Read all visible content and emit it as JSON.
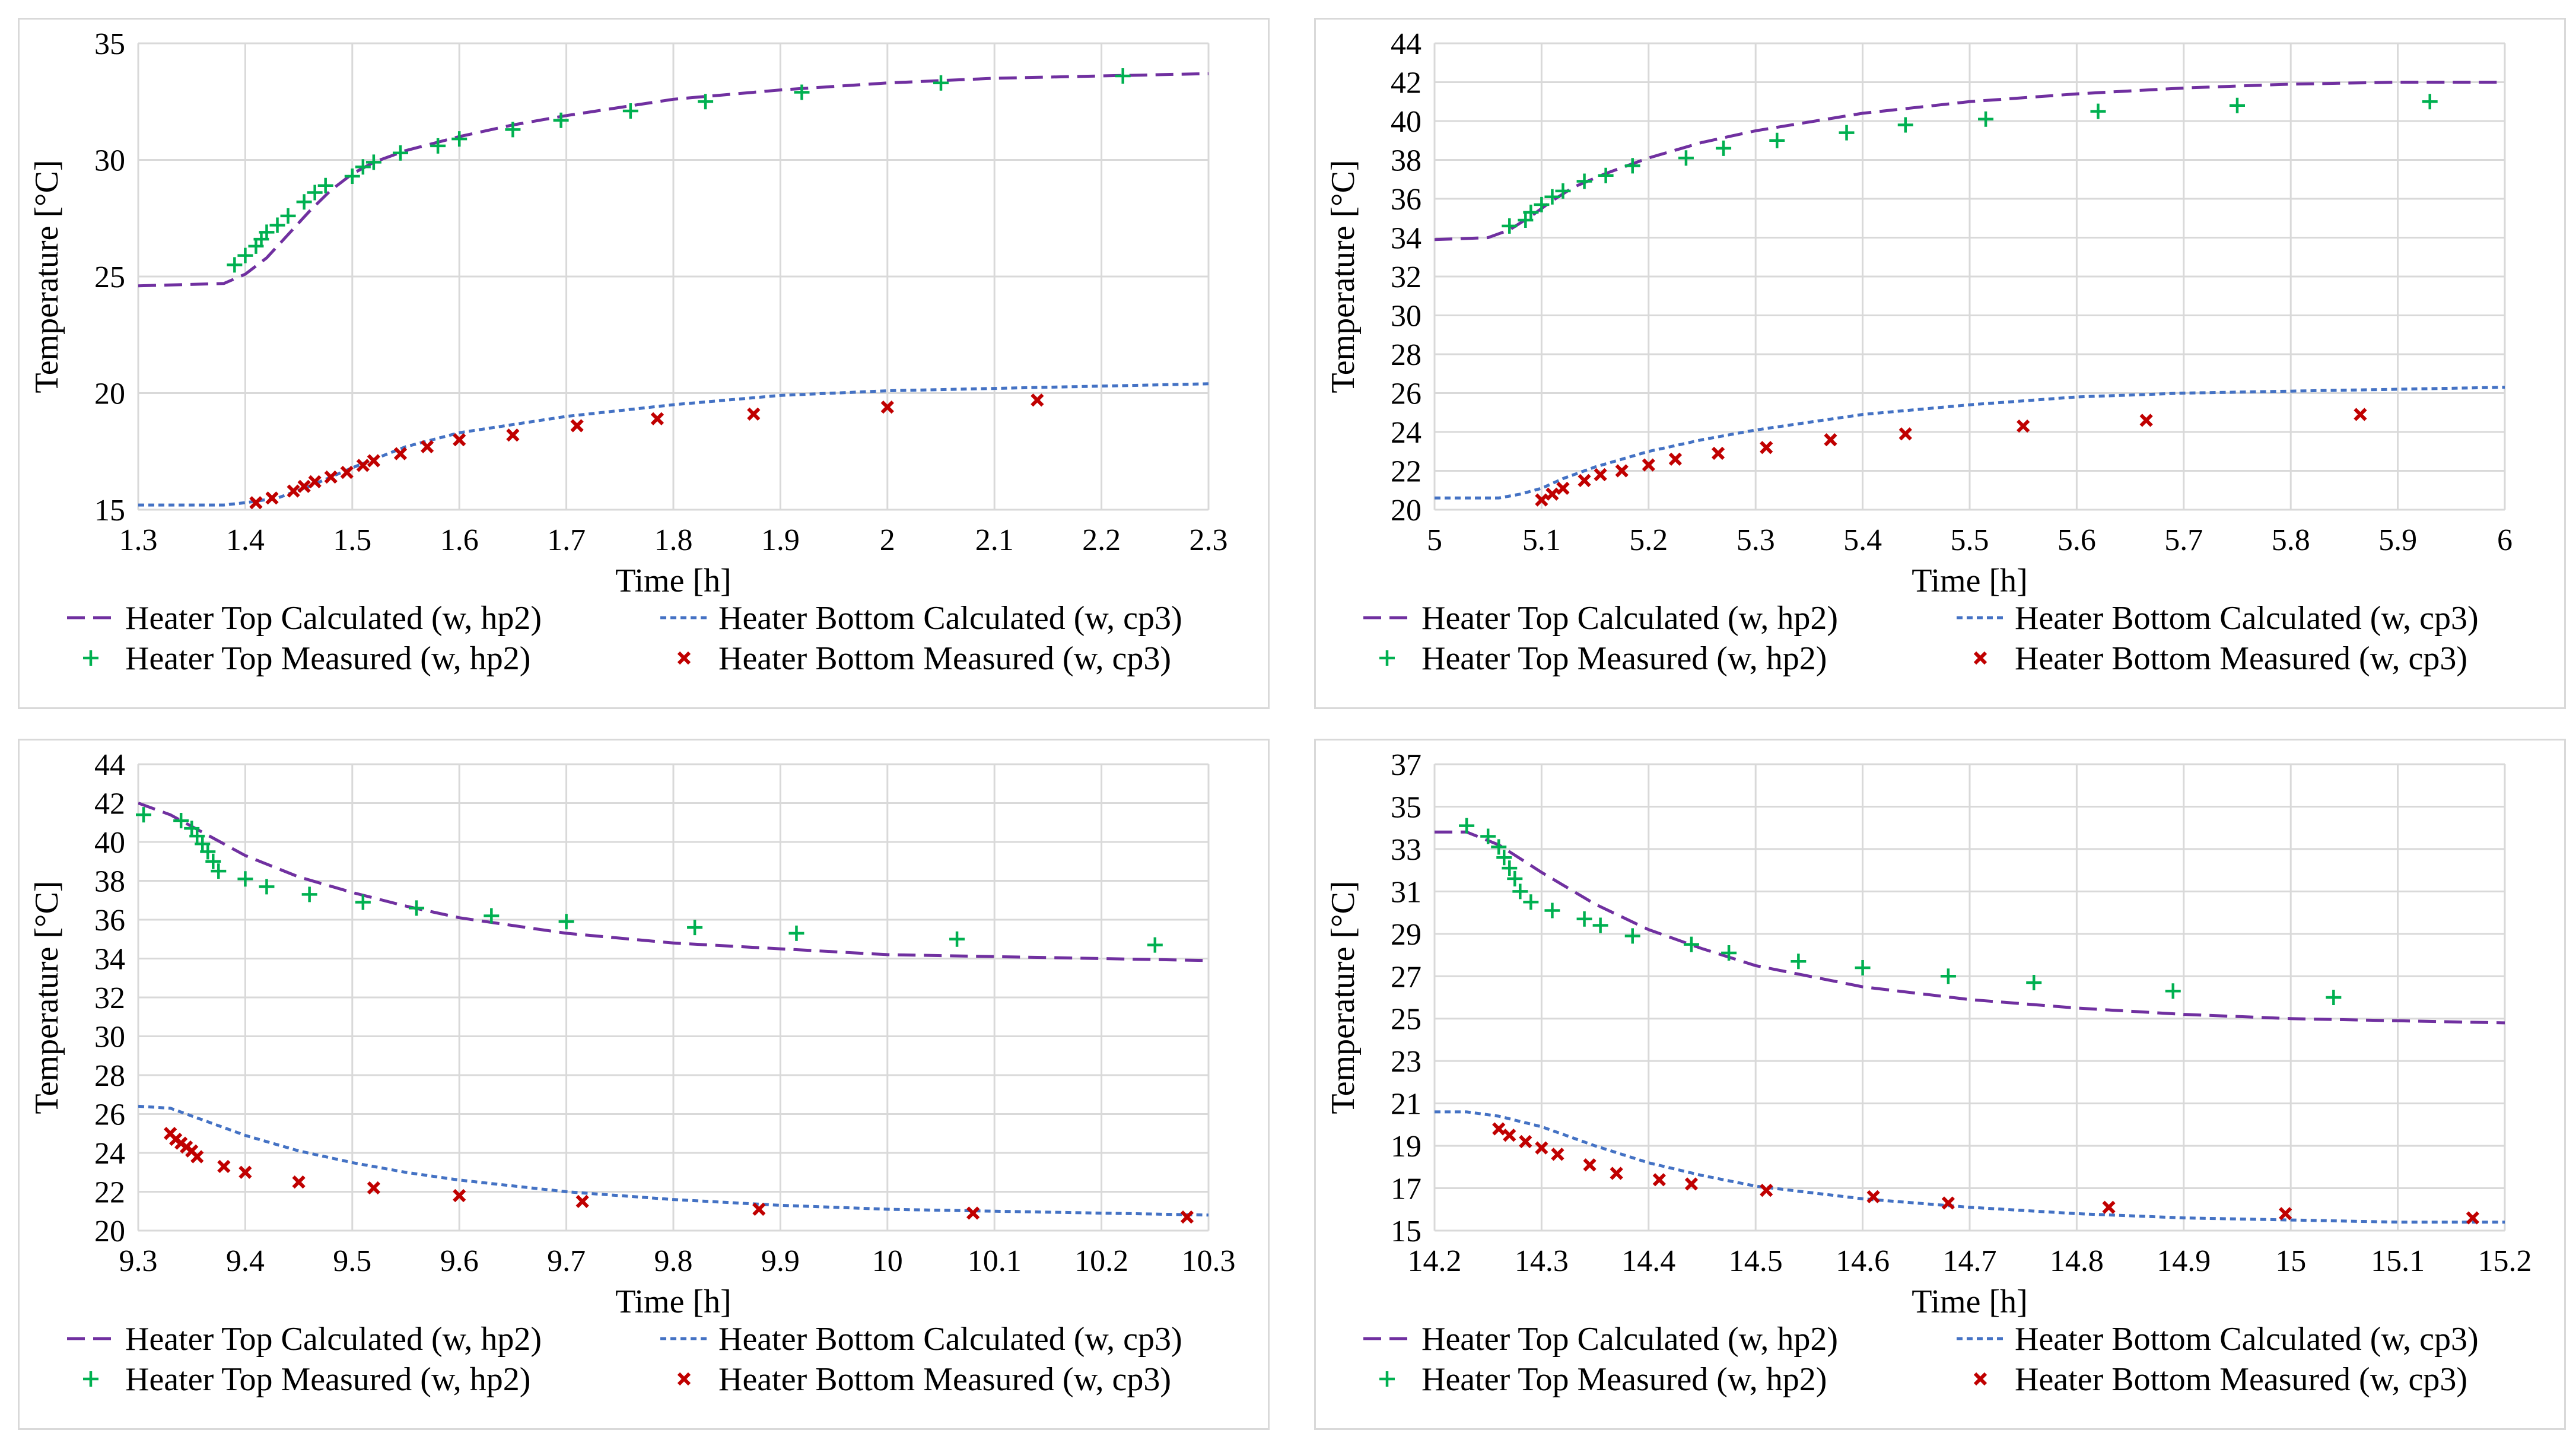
{
  "colors": {
    "top": "#7030a0",
    "bottom": "#4472c4",
    "topMeasured": "#00b050",
    "bottomMeasured": "#c00000",
    "grid": "#d9d9d9"
  },
  "legend": {
    "top_calc": "Heater Top Calculated (w, hp2)",
    "bottom_calc": "Heater Bottom Calculated (w, cp3)",
    "top_meas": "Heater Top Measured (w, hp2)",
    "bottom_meas": "Heater Bottom Measured (w, cp3)"
  },
  "chart_data": [
    {
      "type": "line",
      "xlabel": "Time [h]",
      "ylabel": "Temperature [°C]",
      "xlim": [
        1.3,
        2.3
      ],
      "ylim": [
        15,
        35
      ],
      "xticks": [
        "1.3",
        "1.4",
        "1.5",
        "1.6",
        "1.7",
        "1.8",
        "1.9",
        "2",
        "2.1",
        "2.2",
        "2.3"
      ],
      "yticks": [
        "15",
        "20",
        "25",
        "30",
        "35"
      ],
      "series": [
        {
          "name": "Heater Top Calculated (w, hp2)",
          "style": "dash",
          "x": [
            1.3,
            1.38,
            1.4,
            1.42,
            1.44,
            1.46,
            1.48,
            1.5,
            1.52,
            1.55,
            1.6,
            1.65,
            1.7,
            1.8,
            1.9,
            2.0,
            2.1,
            2.2,
            2.3
          ],
          "y": [
            24.6,
            24.7,
            25.1,
            25.8,
            26.8,
            27.8,
            28.7,
            29.4,
            29.9,
            30.4,
            31.0,
            31.5,
            31.9,
            32.6,
            33.0,
            33.3,
            33.5,
            33.6,
            33.7
          ]
        },
        {
          "name": "Heater Bottom Calculated (w, cp3)",
          "style": "dot",
          "x": [
            1.3,
            1.38,
            1.4,
            1.43,
            1.46,
            1.5,
            1.55,
            1.6,
            1.7,
            1.8,
            1.9,
            2.0,
            2.1,
            2.2,
            2.3
          ],
          "y": [
            15.2,
            15.2,
            15.3,
            15.5,
            16.0,
            16.8,
            17.7,
            18.3,
            19.0,
            19.5,
            19.9,
            20.1,
            20.2,
            20.3,
            20.4
          ]
        },
        {
          "name": "Heater Top Measured (w, hp2)",
          "marker": "plus",
          "x": [
            1.39,
            1.4,
            1.41,
            1.415,
            1.42,
            1.43,
            1.44,
            1.455,
            1.465,
            1.475,
            1.5,
            1.51,
            1.52,
            1.545,
            1.58,
            1.6,
            1.65,
            1.695,
            1.76,
            1.83,
            1.92,
            2.05,
            2.22
          ],
          "y": [
            25.5,
            25.9,
            26.3,
            26.6,
            26.9,
            27.2,
            27.6,
            28.2,
            28.6,
            28.9,
            29.3,
            29.7,
            29.9,
            30.3,
            30.6,
            30.9,
            31.3,
            31.7,
            32.1,
            32.5,
            32.9,
            33.3,
            33.6
          ]
        },
        {
          "name": "Heater Bottom Measured (w, cp3)",
          "marker": "x",
          "x": [
            1.41,
            1.425,
            1.445,
            1.455,
            1.465,
            1.48,
            1.495,
            1.51,
            1.52,
            1.545,
            1.57,
            1.6,
            1.65,
            1.71,
            1.785,
            1.875,
            2.0,
            2.14
          ],
          "y": [
            15.3,
            15.5,
            15.8,
            16.0,
            16.2,
            16.4,
            16.6,
            16.9,
            17.1,
            17.4,
            17.7,
            18.0,
            18.2,
            18.6,
            18.9,
            19.1,
            19.4,
            19.7
          ]
        }
      ]
    },
    {
      "type": "line",
      "xlabel": "Time [h]",
      "ylabel": "Temperature [°C]",
      "xlim": [
        5,
        6
      ],
      "ylim": [
        20,
        44
      ],
      "xticks": [
        "5",
        "5.1",
        "5.2",
        "5.3",
        "5.4",
        "5.5",
        "5.6",
        "5.7",
        "5.8",
        "5.9",
        "6"
      ],
      "yticks": [
        "20",
        "22",
        "24",
        "26",
        "28",
        "30",
        "32",
        "34",
        "36",
        "38",
        "40",
        "42",
        "44"
      ],
      "series": [
        {
          "name": "Heater Top Calculated (w, hp2)",
          "style": "dash",
          "x": [
            5.0,
            5.05,
            5.07,
            5.09,
            5.11,
            5.13,
            5.16,
            5.2,
            5.25,
            5.3,
            5.4,
            5.5,
            5.6,
            5.7,
            5.8,
            5.9,
            6.0
          ],
          "y": [
            33.9,
            34.0,
            34.4,
            35.1,
            35.9,
            36.6,
            37.3,
            38.1,
            38.9,
            39.5,
            40.4,
            41.0,
            41.4,
            41.7,
            41.9,
            42.0,
            42.0
          ]
        },
        {
          "name": "Heater Bottom Calculated (w, cp3)",
          "style": "dot",
          "x": [
            5.0,
            5.06,
            5.08,
            5.1,
            5.12,
            5.15,
            5.2,
            5.25,
            5.3,
            5.4,
            5.5,
            5.6,
            5.7,
            5.8,
            5.9,
            6.0
          ],
          "y": [
            20.6,
            20.6,
            20.8,
            21.1,
            21.6,
            22.2,
            23.0,
            23.6,
            24.1,
            24.9,
            25.4,
            25.8,
            26.0,
            26.1,
            26.2,
            26.3
          ]
        },
        {
          "name": "Heater Top Measured (w, hp2)",
          "marker": "plus",
          "x": [
            5.07,
            5.085,
            5.09,
            5.1,
            5.11,
            5.12,
            5.14,
            5.16,
            5.185,
            5.235,
            5.27,
            5.32,
            5.385,
            5.44,
            5.515,
            5.62,
            5.75,
            5.93
          ],
          "y": [
            34.6,
            34.9,
            35.3,
            35.7,
            36.1,
            36.4,
            36.9,
            37.2,
            37.7,
            38.1,
            38.6,
            39.0,
            39.4,
            39.8,
            40.1,
            40.5,
            40.8,
            41.0
          ]
        },
        {
          "name": "Heater Bottom Measured (w, cp3)",
          "marker": "x",
          "x": [
            5.1,
            5.11,
            5.12,
            5.14,
            5.155,
            5.175,
            5.2,
            5.225,
            5.265,
            5.31,
            5.37,
            5.44,
            5.55,
            5.665,
            5.865
          ],
          "y": [
            20.5,
            20.8,
            21.1,
            21.5,
            21.8,
            22.0,
            22.3,
            22.6,
            22.9,
            23.2,
            23.6,
            23.9,
            24.3,
            24.6,
            24.9
          ]
        }
      ]
    },
    {
      "type": "line",
      "xlabel": "Time [h]",
      "ylabel": "Temperature [°C]",
      "xlim": [
        9.3,
        10.3
      ],
      "ylim": [
        20,
        44
      ],
      "xticks": [
        "9.3",
        "9.4",
        "9.5",
        "9.6",
        "9.7",
        "9.8",
        "9.9",
        "10",
        "10.1",
        "10.2",
        "10.3"
      ],
      "yticks": [
        "20",
        "22",
        "24",
        "26",
        "28",
        "30",
        "32",
        "34",
        "36",
        "38",
        "40",
        "42",
        "44"
      ],
      "series": [
        {
          "name": "Heater Top Calculated (w, hp2)",
          "style": "dash",
          "x": [
            9.3,
            9.33,
            9.36,
            9.4,
            9.45,
            9.5,
            9.55,
            9.6,
            9.7,
            9.8,
            9.9,
            10.0,
            10.1,
            10.2,
            10.3
          ],
          "y": [
            42.0,
            41.4,
            40.5,
            39.3,
            38.2,
            37.4,
            36.7,
            36.1,
            35.3,
            34.8,
            34.5,
            34.2,
            34.1,
            34.0,
            33.9
          ]
        },
        {
          "name": "Heater Bottom Calculated (w, cp3)",
          "style": "dot",
          "x": [
            9.3,
            9.33,
            9.36,
            9.4,
            9.45,
            9.5,
            9.55,
            9.6,
            9.7,
            9.8,
            9.9,
            10.0,
            10.1,
            10.2,
            10.3
          ],
          "y": [
            26.4,
            26.3,
            25.7,
            24.9,
            24.1,
            23.5,
            23.0,
            22.6,
            22.0,
            21.6,
            21.3,
            21.1,
            21.0,
            20.9,
            20.8
          ]
        },
        {
          "name": "Heater Top Measured (w, hp2)",
          "marker": "plus",
          "x": [
            9.305,
            9.34,
            9.35,
            9.355,
            9.36,
            9.365,
            9.37,
            9.375,
            9.4,
            9.42,
            9.46,
            9.51,
            9.56,
            9.63,
            9.7,
            9.82,
            9.915,
            10.065,
            10.25
          ],
          "y": [
            41.4,
            41.1,
            40.7,
            40.3,
            39.9,
            39.5,
            39.0,
            38.5,
            38.1,
            37.7,
            37.3,
            36.9,
            36.6,
            36.2,
            35.9,
            35.6,
            35.3,
            35.0,
            34.7
          ]
        },
        {
          "name": "Heater Bottom Measured (w, cp3)",
          "marker": "x",
          "x": [
            9.33,
            9.335,
            9.34,
            9.345,
            9.35,
            9.355,
            9.38,
            9.4,
            9.45,
            9.52,
            9.6,
            9.715,
            9.88,
            10.08,
            10.28
          ],
          "y": [
            25.0,
            24.7,
            24.5,
            24.3,
            24.1,
            23.8,
            23.3,
            23.0,
            22.5,
            22.2,
            21.8,
            21.5,
            21.1,
            20.9,
            20.7
          ]
        }
      ]
    },
    {
      "type": "line",
      "xlabel": "Time [h]",
      "ylabel": "Temperature [°C]",
      "xlim": [
        14.2,
        15.2
      ],
      "ylim": [
        15,
        37
      ],
      "xticks": [
        "14.2",
        "14.3",
        "14.4",
        "14.5",
        "14.6",
        "14.7",
        "14.8",
        "14.9",
        "15",
        "15.1",
        "15.2"
      ],
      "yticks": [
        "15",
        "17",
        "19",
        "21",
        "23",
        "25",
        "27",
        "29",
        "31",
        "33",
        "35",
        "37"
      ],
      "series": [
        {
          "name": "Heater Top Calculated (w, hp2)",
          "style": "dash",
          "x": [
            14.2,
            14.23,
            14.26,
            14.3,
            14.35,
            14.4,
            14.45,
            14.5,
            14.6,
            14.7,
            14.8,
            14.9,
            15.0,
            15.1,
            15.2
          ],
          "y": [
            33.8,
            33.8,
            33.2,
            31.9,
            30.4,
            29.2,
            28.3,
            27.5,
            26.5,
            25.9,
            25.5,
            25.2,
            25.0,
            24.9,
            24.8
          ]
        },
        {
          "name": "Heater Bottom Calculated (w, cp3)",
          "style": "dot",
          "x": [
            14.2,
            14.23,
            14.26,
            14.3,
            14.35,
            14.4,
            14.45,
            14.5,
            14.6,
            14.7,
            14.8,
            14.9,
            15.0,
            15.1,
            15.2
          ],
          "y": [
            20.6,
            20.6,
            20.4,
            19.9,
            19.0,
            18.2,
            17.6,
            17.1,
            16.5,
            16.1,
            15.8,
            15.6,
            15.5,
            15.4,
            15.4
          ]
        },
        {
          "name": "Heater Top Measured (w, hp2)",
          "marker": "plus",
          "x": [
            14.23,
            14.25,
            14.26,
            14.265,
            14.27,
            14.275,
            14.28,
            14.29,
            14.31,
            14.34,
            14.355,
            14.385,
            14.44,
            14.475,
            14.54,
            14.6,
            14.68,
            14.76,
            14.89,
            15.04
          ],
          "y": [
            34.1,
            33.6,
            33.1,
            32.6,
            32.1,
            31.6,
            31.0,
            30.5,
            30.1,
            29.7,
            29.4,
            28.9,
            28.5,
            28.1,
            27.7,
            27.4,
            27.0,
            26.7,
            26.3,
            26.0
          ]
        },
        {
          "name": "Heater Bottom Measured (w, cp3)",
          "marker": "x",
          "x": [
            14.26,
            14.27,
            14.285,
            14.3,
            14.315,
            14.345,
            14.37,
            14.41,
            14.44,
            14.51,
            14.61,
            14.68,
            14.83,
            14.995,
            15.17
          ],
          "y": [
            19.8,
            19.5,
            19.2,
            18.9,
            18.6,
            18.1,
            17.7,
            17.4,
            17.2,
            16.9,
            16.6,
            16.3,
            16.1,
            15.8,
            15.6
          ]
        }
      ]
    }
  ]
}
